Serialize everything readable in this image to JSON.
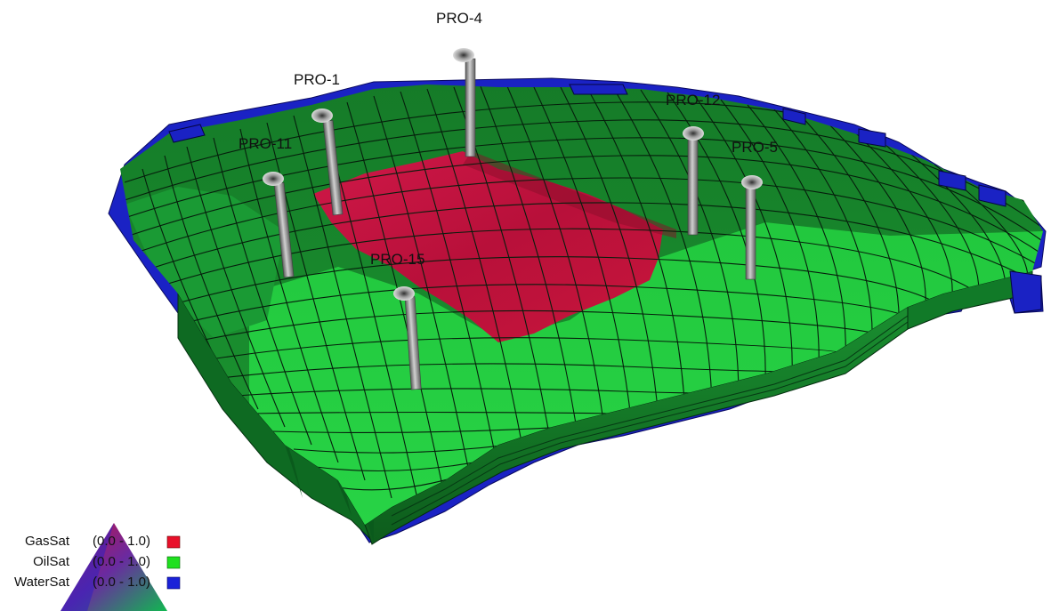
{
  "viewer": {
    "wells": [
      {
        "name": "PRO-4"
      },
      {
        "name": "PRO-1"
      },
      {
        "name": "PRO-11"
      },
      {
        "name": "PRO-12"
      },
      {
        "name": "PRO-5"
      },
      {
        "name": "PRO-15"
      }
    ]
  },
  "legend": {
    "entries": [
      {
        "label": "GasSat",
        "range": "(0.0 - 1.0)",
        "color": "#e8102a"
      },
      {
        "label": "OilSat",
        "range": "(0.0 - 1.0)",
        "color": "#1fe01f"
      },
      {
        "label": "WaterSat",
        "range": "(0.0 - 1.0)",
        "color": "#1a1ad8"
      }
    ]
  },
  "colors": {
    "gas": "#c8163c",
    "oil_light": "#1ec83a",
    "oil_dark": "#178a2c",
    "water": "#1a25c8",
    "well_tube": "#8c8c8c"
  }
}
